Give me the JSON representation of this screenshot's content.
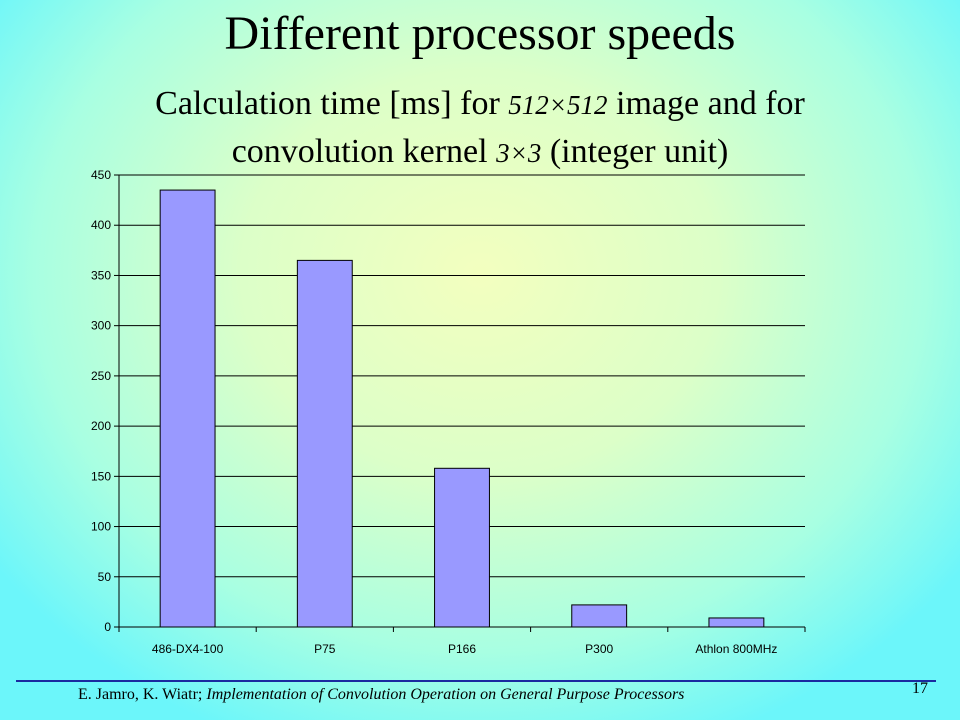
{
  "slide": {
    "title": "Different processor speeds",
    "subtitle_line1_pre": "Calculation time [ms] for ",
    "subtitle_line1_ital": "512×512",
    "subtitle_line1_post": " image and for",
    "subtitle_line2_pre": "convolution kernel ",
    "subtitle_line2_ital": "3×3",
    "subtitle_line2_post": " (integer unit)",
    "footer_authors": "E. Jamro, K. Wiatr; ",
    "footer_paper": "Implementation of Convolution Operation on General Purpose Processors",
    "page_number": "17"
  },
  "colors": {
    "bar_fill": "#9999ff",
    "bar_stroke": "#000000",
    "footer_rule": "#1a2aa0"
  },
  "chart_data": {
    "type": "bar",
    "title": "",
    "xlabel": "",
    "ylabel": "",
    "categories": [
      "486-DX4-100",
      "P75",
      "P166",
      "P300",
      "Athlon 800MHz"
    ],
    "values": [
      435,
      365,
      158,
      22,
      9
    ],
    "ylim": [
      0,
      450
    ],
    "yticks": [
      0,
      50,
      100,
      150,
      200,
      250,
      300,
      350,
      400,
      450
    ],
    "grid": true,
    "legend": "none"
  }
}
